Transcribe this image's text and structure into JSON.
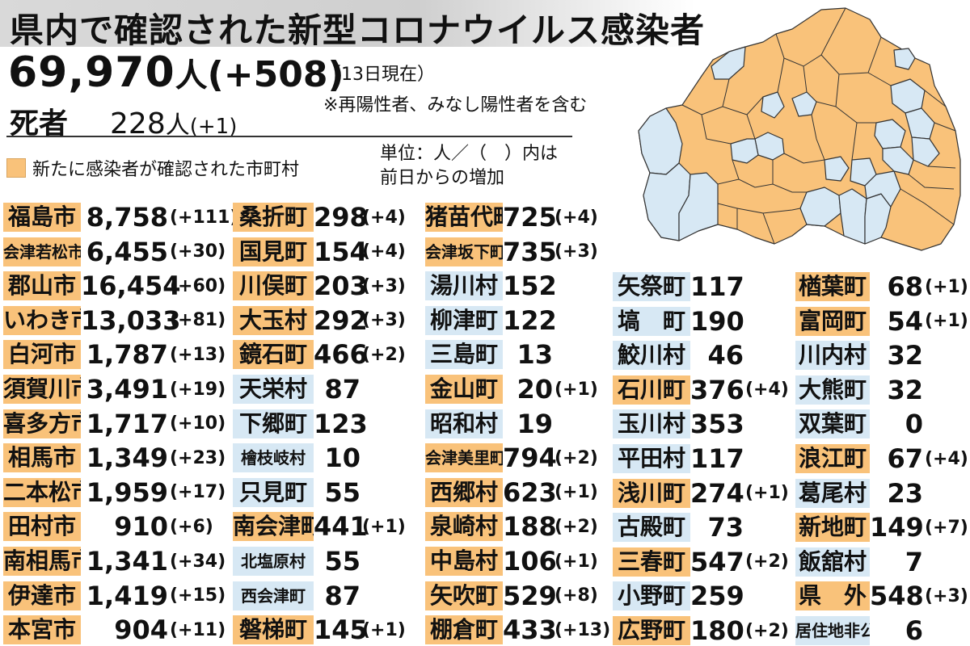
{
  "header": {
    "title": "県内で確認された新型コロナウイルス感染者"
  },
  "summary": {
    "total": "69,970",
    "total_unit": "人",
    "total_delta": "(+508)",
    "as_of": "（13日現在）",
    "note": "※再陽性者、みなし陽性者を含む",
    "deaths_label": "死者",
    "deaths": "228",
    "deaths_unit": "人",
    "deaths_delta": "(+1)"
  },
  "legend": {
    "label": "新たに感染者が確認された市町村",
    "color": "#f9c27a",
    "unit_line1": "単位：人／（　）内は",
    "unit_line2": "前日からの増加"
  },
  "colors": {
    "new_case": "#f9c27a",
    "no_new_case": "#d7e8f4"
  },
  "columns": [
    [
      {
        "name": "福島市",
        "count": "8,758",
        "delta": "(+111)",
        "new": true
      },
      {
        "name": "会津若松市",
        "count": "6,455",
        "delta": "(+30)",
        "new": true,
        "small": true
      },
      {
        "name": "郡山市",
        "count": "16,454",
        "delta": "(+60)",
        "new": true
      },
      {
        "name": "いわき市",
        "count": "13,033",
        "delta": "(+81)",
        "new": true
      },
      {
        "name": "白河市",
        "count": "1,787",
        "delta": "(+13)",
        "new": true
      },
      {
        "name": "須賀川市",
        "count": "3,491",
        "delta": "(+19)",
        "new": true
      },
      {
        "name": "喜多方市",
        "count": "1,717",
        "delta": "(+10)",
        "new": true
      },
      {
        "name": "相馬市",
        "count": "1,349",
        "delta": "(+23)",
        "new": true
      },
      {
        "name": "二本松市",
        "count": "1,959",
        "delta": "(+17)",
        "new": true
      },
      {
        "name": "田村市",
        "count": "910",
        "delta": "(+6)",
        "new": true
      },
      {
        "name": "南相馬市",
        "count": "1,341",
        "delta": "(+34)",
        "new": true
      },
      {
        "name": "伊達市",
        "count": "1,419",
        "delta": "(+15)",
        "new": true
      },
      {
        "name": "本宮市",
        "count": "904",
        "delta": "(+11)",
        "new": true
      }
    ],
    [
      {
        "name": "桑折町",
        "count": "298",
        "delta": "(+4)",
        "new": true
      },
      {
        "name": "国見町",
        "count": "154",
        "delta": "(+4)",
        "new": true
      },
      {
        "name": "川俣町",
        "count": "203",
        "delta": "(+3)",
        "new": true
      },
      {
        "name": "大玉村",
        "count": "292",
        "delta": "(+3)",
        "new": true
      },
      {
        "name": "鏡石町",
        "count": "466",
        "delta": "(+2)",
        "new": true
      },
      {
        "name": "天栄村",
        "count": "87",
        "delta": "",
        "new": false
      },
      {
        "name": "下郷町",
        "count": "123",
        "delta": "",
        "new": false
      },
      {
        "name": "檜枝岐村",
        "count": "10",
        "delta": "",
        "new": false,
        "small": true
      },
      {
        "name": "只見町",
        "count": "55",
        "delta": "",
        "new": false
      },
      {
        "name": "南会津町",
        "count": "441",
        "delta": "(+1)",
        "new": true
      },
      {
        "name": "北塩原村",
        "count": "55",
        "delta": "",
        "new": false,
        "small": true
      },
      {
        "name": "西会津町",
        "count": "87",
        "delta": "",
        "new": false,
        "small": true
      },
      {
        "name": "磐梯町",
        "count": "145",
        "delta": "(+1)",
        "new": true
      }
    ],
    [
      {
        "name": "猪苗代町",
        "count": "725",
        "delta": "(+4)",
        "new": true
      },
      {
        "name": "会津坂下町",
        "count": "735",
        "delta": "(+3)",
        "new": true,
        "small": true
      },
      {
        "name": "湯川村",
        "count": "152",
        "delta": "",
        "new": false
      },
      {
        "name": "柳津町",
        "count": "122",
        "delta": "",
        "new": false
      },
      {
        "name": "三島町",
        "count": "13",
        "delta": "",
        "new": false
      },
      {
        "name": "金山町",
        "count": "20",
        "delta": "(+1)",
        "new": true
      },
      {
        "name": "昭和村",
        "count": "19",
        "delta": "",
        "new": false
      },
      {
        "name": "会津美里町",
        "count": "794",
        "delta": "(+2)",
        "new": true,
        "small": true
      },
      {
        "name": "西郷村",
        "count": "623",
        "delta": "(+1)",
        "new": true
      },
      {
        "name": "泉崎村",
        "count": "188",
        "delta": "(+2)",
        "new": true
      },
      {
        "name": "中島村",
        "count": "106",
        "delta": "(+1)",
        "new": true
      },
      {
        "name": "矢吹町",
        "count": "529",
        "delta": "(+8)",
        "new": true
      },
      {
        "name": "棚倉町",
        "count": "433",
        "delta": "(+13)",
        "new": true
      }
    ],
    [
      {
        "name": "矢祭町",
        "count": "117",
        "delta": "",
        "new": false
      },
      {
        "name": "塙　町",
        "count": "190",
        "delta": "",
        "new": false
      },
      {
        "name": "鮫川村",
        "count": "46",
        "delta": "",
        "new": false
      },
      {
        "name": "石川町",
        "count": "376",
        "delta": "(+4)",
        "new": true
      },
      {
        "name": "玉川村",
        "count": "353",
        "delta": "",
        "new": false
      },
      {
        "name": "平田村",
        "count": "117",
        "delta": "",
        "new": false
      },
      {
        "name": "浅川町",
        "count": "274",
        "delta": "(+1)",
        "new": true
      },
      {
        "name": "古殿町",
        "count": "73",
        "delta": "",
        "new": false
      },
      {
        "name": "三春町",
        "count": "547",
        "delta": "(+2)",
        "new": true
      },
      {
        "name": "小野町",
        "count": "259",
        "delta": "",
        "new": false
      },
      {
        "name": "広野町",
        "count": "180",
        "delta": "(+2)",
        "new": true
      }
    ],
    [
      {
        "name": "楢葉町",
        "count": "68",
        "delta": "(+1)",
        "new": true
      },
      {
        "name": "富岡町",
        "count": "54",
        "delta": "(+1)",
        "new": true
      },
      {
        "name": "川内村",
        "count": "32",
        "delta": "",
        "new": false
      },
      {
        "name": "大熊町",
        "count": "32",
        "delta": "",
        "new": false
      },
      {
        "name": "双葉町",
        "count": "0",
        "delta": "",
        "new": false
      },
      {
        "name": "浪江町",
        "count": "67",
        "delta": "(+4)",
        "new": true
      },
      {
        "name": "葛尾村",
        "count": "23",
        "delta": "",
        "new": false
      },
      {
        "name": "新地町",
        "count": "149",
        "delta": "(+7)",
        "new": true
      },
      {
        "name": "飯舘村",
        "count": "7",
        "delta": "",
        "new": false
      },
      {
        "name": "県　外",
        "count": "548",
        "delta": "(+3)",
        "new": true
      },
      {
        "name": "居住地非公表",
        "count": "6",
        "delta": "",
        "new": false,
        "small": true
      }
    ]
  ]
}
